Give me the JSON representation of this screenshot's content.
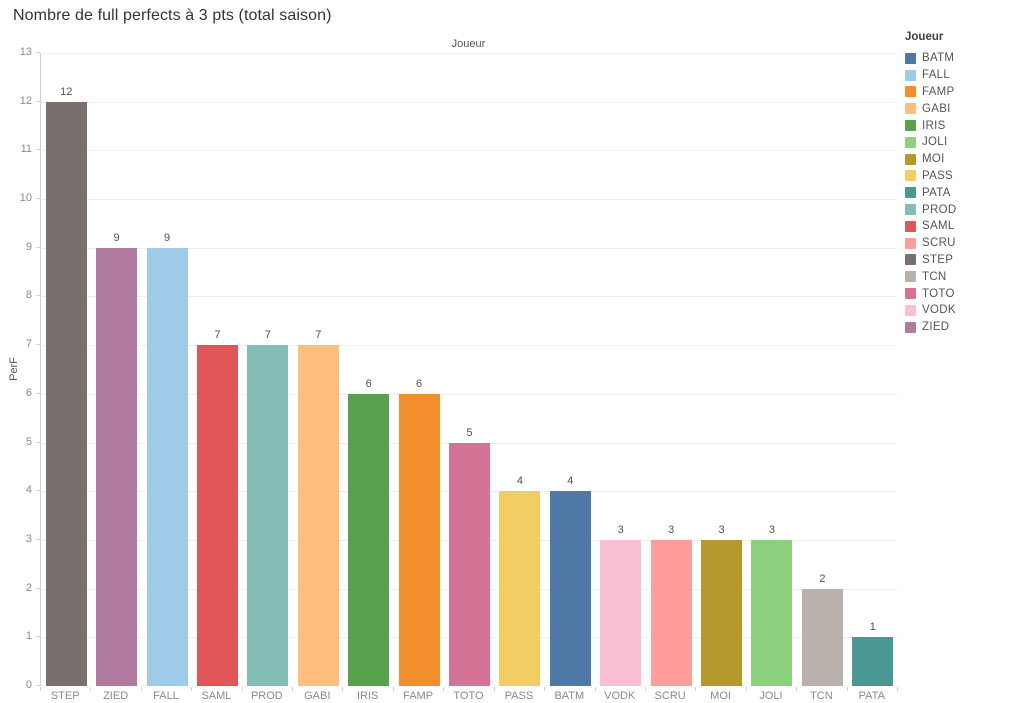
{
  "chart_data": {
    "type": "bar",
    "title": "Nombre de full perfects à 3 pts (total saison)",
    "column_header": "Joueur",
    "xlabel": "Joueur",
    "ylabel": "PerF",
    "ylim": [
      0,
      13
    ],
    "ytick_step": 1,
    "grid": true,
    "show_value_labels": true,
    "categories": [
      "STEP",
      "ZIED",
      "FALL",
      "SAML",
      "PROD",
      "GABI",
      "IRIS",
      "FAMP",
      "TOTO",
      "PASS",
      "BATM",
      "VODK",
      "SCRU",
      "MOI",
      "JOLI",
      "TCN",
      "PATA"
    ],
    "values": [
      12,
      9,
      9,
      7,
      7,
      7,
      6,
      6,
      5,
      4,
      4,
      3,
      3,
      3,
      3,
      2,
      1
    ],
    "legend": {
      "title": "Joueur",
      "position": "right",
      "entries": [
        {
          "label": "BATM",
          "color": "#4E79A7"
        },
        {
          "label": "FALL",
          "color": "#A0CBE8"
        },
        {
          "label": "FAMP",
          "color": "#F28E2B"
        },
        {
          "label": "GABI",
          "color": "#FFBE7D"
        },
        {
          "label": "IRIS",
          "color": "#59A14F"
        },
        {
          "label": "JOLI",
          "color": "#8CD17D"
        },
        {
          "label": "MOI",
          "color": "#B6992D"
        },
        {
          "label": "PASS",
          "color": "#F1CE63"
        },
        {
          "label": "PATA",
          "color": "#499894"
        },
        {
          "label": "PROD",
          "color": "#86BCB6"
        },
        {
          "label": "SAML",
          "color": "#E15759"
        },
        {
          "label": "SCRU",
          "color": "#FF9D9A"
        },
        {
          "label": "STEP",
          "color": "#79706E"
        },
        {
          "label": "TCN",
          "color": "#BAB0AC"
        },
        {
          "label": "TOTO",
          "color": "#D37295"
        },
        {
          "label": "VODK",
          "color": "#FABFD2"
        },
        {
          "label": "ZIED",
          "color": "#B07AA1"
        }
      ]
    }
  }
}
